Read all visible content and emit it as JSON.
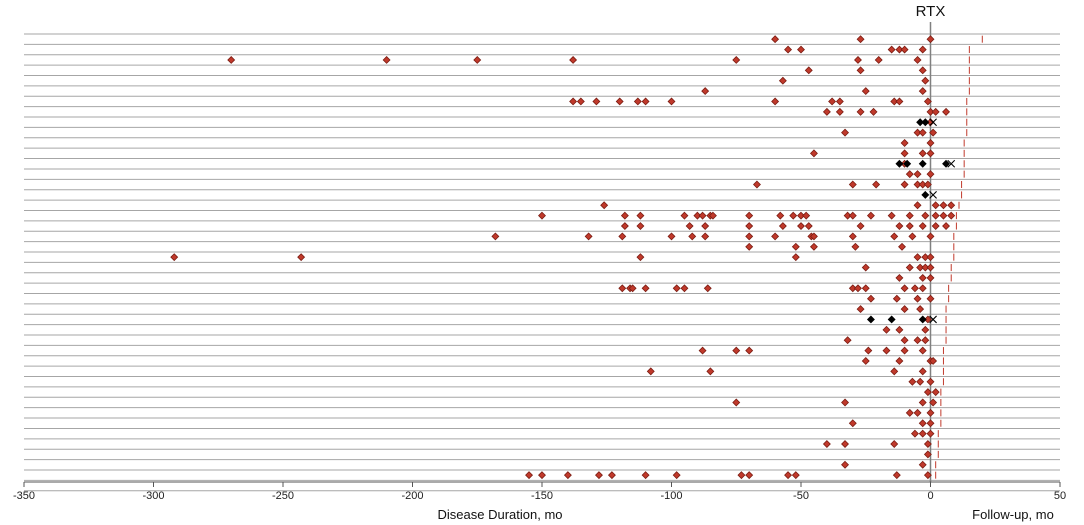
{
  "chart_data": {
    "type": "scatter",
    "title": "",
    "marker_label": "RTX",
    "xlabel_left": "Disease Duration, mo",
    "xlabel_right": "Follow-up, mo",
    "xlim": [
      -350,
      50
    ],
    "x_ticks": [
      -350,
      -300,
      -250,
      -200,
      -150,
      -100,
      -50,
      0,
      50
    ],
    "grid": "horizontal rows",
    "legend": "none",
    "colors": {
      "relapse": "#c0392b",
      "relapse_stroke": "#7a1d13",
      "other": "#000000",
      "row_line": "#a6a6a6",
      "followup_tick": "#c0392b",
      "rtx_line": "#808080"
    },
    "rows": [
      {
        "red": [
          -60,
          -27,
          0
        ],
        "black": [],
        "x_mark": [],
        "fu": 20
      },
      {
        "red": [
          -55,
          -50,
          -15,
          -12,
          -10,
          -3
        ],
        "black": [],
        "x_mark": [],
        "fu": 15
      },
      {
        "red": [
          -270,
          -210,
          -175,
          -138,
          -75,
          -28,
          -20,
          -5
        ],
        "black": [],
        "x_mark": [],
        "fu": 15
      },
      {
        "red": [
          -47,
          -27,
          -3
        ],
        "black": [],
        "x_mark": [],
        "fu": 15
      },
      {
        "red": [
          -57,
          -2
        ],
        "black": [],
        "x_mark": [],
        "fu": 15
      },
      {
        "red": [
          -87,
          -25,
          -3
        ],
        "black": [],
        "x_mark": [],
        "fu": 15
      },
      {
        "red": [
          -138,
          -135,
          -129,
          -120,
          -113,
          -110,
          -100,
          -60,
          -38,
          -35,
          -14,
          -12,
          -1
        ],
        "black": [],
        "x_mark": [],
        "fu": 14
      },
      {
        "red": [
          -40,
          -35,
          -27,
          -22,
          0,
          2,
          6
        ],
        "black": [],
        "x_mark": [],
        "fu": 14
      },
      {
        "red": [
          0
        ],
        "black": [
          -4,
          -2
        ],
        "x_mark": [
          1
        ],
        "fu": 14
      },
      {
        "red": [
          -33,
          -5,
          -3,
          1
        ],
        "black": [],
        "x_mark": [],
        "fu": 14
      },
      {
        "red": [
          -10,
          0
        ],
        "black": [],
        "x_mark": [],
        "fu": 13
      },
      {
        "red": [
          -45,
          -10,
          -3,
          0
        ],
        "black": [],
        "x_mark": [],
        "fu": 13
      },
      {
        "red": [
          -10
        ],
        "black": [
          -12,
          -9,
          -3,
          6
        ],
        "x_mark": [
          8
        ],
        "fu": 13
      },
      {
        "red": [
          -8,
          -5,
          0
        ],
        "black": [],
        "x_mark": [],
        "fu": 13
      },
      {
        "red": [
          -67,
          -30,
          -21,
          -10,
          -5,
          -3,
          -1
        ],
        "black": [],
        "x_mark": [],
        "fu": 12
      },
      {
        "red": [],
        "black": [
          -2
        ],
        "x_mark": [
          1
        ],
        "fu": 12
      },
      {
        "red": [
          -126,
          -5,
          2,
          5,
          8
        ],
        "black": [],
        "x_mark": [],
        "fu": 11
      },
      {
        "red": [
          -150,
          -118,
          -112,
          -95,
          -90,
          -88,
          -85,
          -84,
          -70,
          -58,
          -53,
          -50,
          -48,
          -32,
          -30,
          -23,
          -15,
          -8,
          -2,
          2,
          5,
          8
        ],
        "black": [],
        "x_mark": [],
        "fu": 10
      },
      {
        "red": [
          -118,
          -112,
          -93,
          -87,
          -70,
          -57,
          -50,
          -47,
          -27,
          -12,
          -8,
          -3,
          2,
          6
        ],
        "black": [],
        "x_mark": [],
        "fu": 10
      },
      {
        "red": [
          -168,
          -132,
          -119,
          -100,
          -92,
          -87,
          -70,
          -60,
          -46,
          -45,
          -30,
          -14,
          -7,
          0
        ],
        "black": [],
        "x_mark": [],
        "fu": 9
      },
      {
        "red": [
          -70,
          -52,
          -45,
          -29,
          -11
        ],
        "black": [],
        "x_mark": [],
        "fu": 9
      },
      {
        "red": [
          -292,
          -243,
          -112,
          -52,
          -5,
          -2,
          0
        ],
        "black": [],
        "x_mark": [],
        "fu": 9
      },
      {
        "red": [
          -25,
          -8,
          -4,
          -2,
          0
        ],
        "black": [],
        "x_mark": [],
        "fu": 8
      },
      {
        "red": [
          -12,
          -3,
          0
        ],
        "black": [],
        "x_mark": [],
        "fu": 8
      },
      {
        "red": [
          -119,
          -116,
          -115,
          -110,
          -98,
          -95,
          -86,
          -30,
          -28,
          -25,
          -10,
          -6,
          -3
        ],
        "black": [],
        "x_mark": [],
        "fu": 7
      },
      {
        "red": [
          -23,
          -13,
          -5,
          0
        ],
        "black": [],
        "x_mark": [],
        "fu": 7
      },
      {
        "red": [
          -27,
          -10,
          -4
        ],
        "black": [],
        "x_mark": [],
        "fu": 6
      },
      {
        "red": [
          -1
        ],
        "black": [
          -23,
          -15,
          -3
        ],
        "x_mark": [
          1
        ],
        "fu": 6
      },
      {
        "red": [
          -17,
          -12,
          -2
        ],
        "black": [],
        "x_mark": [],
        "fu": 6
      },
      {
        "red": [
          -32,
          -10,
          -5,
          -2
        ],
        "black": [],
        "x_mark": [],
        "fu": 6
      },
      {
        "red": [
          -88,
          -75,
          -70,
          -24,
          -17,
          -10,
          -3
        ],
        "black": [],
        "x_mark": [],
        "fu": 5
      },
      {
        "red": [
          -25,
          -12,
          0,
          1
        ],
        "black": [],
        "x_mark": [],
        "fu": 5
      },
      {
        "red": [
          -108,
          -85,
          -14,
          -3
        ],
        "black": [],
        "x_mark": [],
        "fu": 5
      },
      {
        "red": [
          -7,
          -4,
          0
        ],
        "black": [],
        "x_mark": [],
        "fu": 5
      },
      {
        "red": [
          -1,
          2
        ],
        "black": [],
        "x_mark": [],
        "fu": 4
      },
      {
        "red": [
          -75,
          -33,
          -3,
          1
        ],
        "black": [],
        "x_mark": [],
        "fu": 4
      },
      {
        "red": [
          -8,
          -5,
          0
        ],
        "black": [],
        "x_mark": [],
        "fu": 4
      },
      {
        "red": [
          -30,
          -3,
          0
        ],
        "black": [],
        "x_mark": [],
        "fu": 4
      },
      {
        "red": [
          -6,
          -3,
          0
        ],
        "black": [],
        "x_mark": [],
        "fu": 3
      },
      {
        "red": [
          -40,
          -33,
          -14,
          -1
        ],
        "black": [],
        "x_mark": [],
        "fu": 3
      },
      {
        "red": [
          -1
        ],
        "black": [],
        "x_mark": [],
        "fu": 3
      },
      {
        "red": [
          -33,
          -3
        ],
        "black": [],
        "x_mark": [],
        "fu": 2
      },
      {
        "red": [
          -155,
          -150,
          -140,
          -128,
          -123,
          -110,
          -98,
          -73,
          -70,
          -55,
          -52,
          -13,
          -1
        ],
        "black": [],
        "x_mark": [],
        "fu": 2
      },
      {
        "red": [],
        "black": [],
        "x_mark": [],
        "fu": null
      }
    ]
  }
}
